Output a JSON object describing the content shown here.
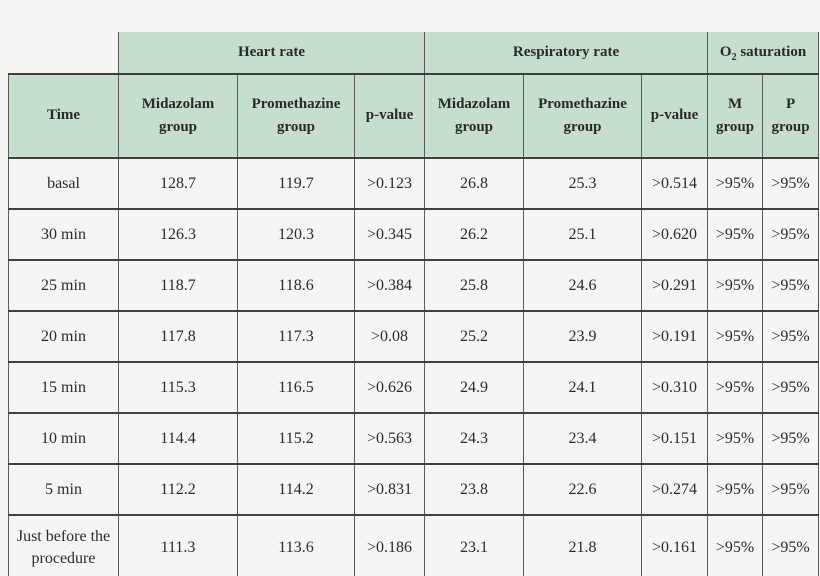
{
  "colors": {
    "page_background": "#f5f5f3",
    "header_background": "#c5decd",
    "grid_horizontal": "#3f3f3f",
    "grid_vertical": "#5a5a5a",
    "text": "#2a2a2a"
  },
  "table": {
    "time_header": "Time",
    "groups": [
      {
        "label": "Heart rate"
      },
      {
        "label": "Respiratory rate"
      },
      {
        "label_prefix": "O",
        "label_sub": "2",
        "label_suffix": " saturation"
      }
    ],
    "sub_headers": [
      "Midazolam\ngroup",
      "Promethazine\ngroup",
      "p-value",
      "Midazolam\ngroup",
      "Promethazine\ngroup",
      "p-value",
      "M\ngroup",
      "P\ngroup"
    ],
    "rows": [
      {
        "time": "basal",
        "cells": [
          "128.7",
          "119.7",
          ">0.123",
          "26.8",
          "25.3",
          ">0.514",
          ">95%",
          ">95%"
        ]
      },
      {
        "time": "30 min",
        "cells": [
          "126.3",
          "120.3",
          ">0.345",
          "26.2",
          "25.1",
          ">0.620",
          ">95%",
          ">95%"
        ]
      },
      {
        "time": "25 min",
        "cells": [
          "118.7",
          "118.6",
          ">0.384",
          "25.8",
          "24.6",
          ">0.291",
          ">95%",
          ">95%"
        ]
      },
      {
        "time": "20 min",
        "cells": [
          "117.8",
          "117.3",
          ">0.08",
          "25.2",
          "23.9",
          ">0.191",
          ">95%",
          ">95%"
        ]
      },
      {
        "time": "15 min",
        "cells": [
          "115.3",
          "116.5",
          ">0.626",
          "24.9",
          "24.1",
          ">0.310",
          ">95%",
          ">95%"
        ]
      },
      {
        "time": "10 min",
        "cells": [
          "114.4",
          "115.2",
          ">0.563",
          "24.3",
          "23.4",
          ">0.151",
          ">95%",
          ">95%"
        ]
      },
      {
        "time": "5 min",
        "cells": [
          "112.2",
          "114.2",
          ">0.831",
          "23.8",
          "22.6",
          ">0.274",
          ">95%",
          ">95%"
        ]
      },
      {
        "time": "Just before the\nprocedure",
        "cells": [
          "111.3",
          "113.6",
          ">0.186",
          "23.1",
          "21.8",
          ">0.161",
          ">95%",
          ">95%"
        ]
      }
    ]
  }
}
